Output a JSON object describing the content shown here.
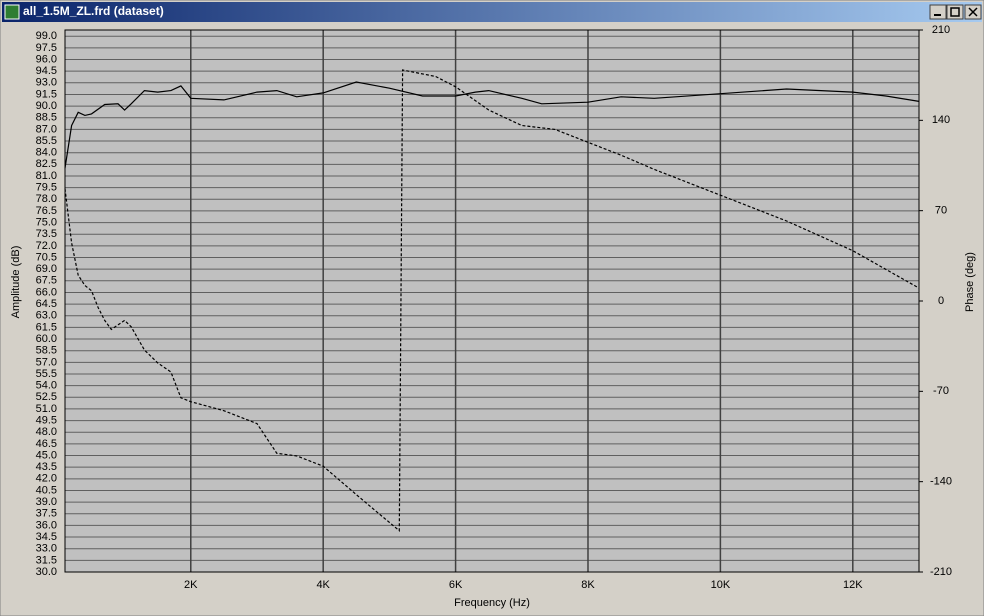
{
  "window": {
    "title": "all_1.5M_ZL.frd (dataset)"
  },
  "chart_data": {
    "type": "line",
    "xlabel": "Frequency (Hz)",
    "ylabel": "Amplitude (dB)",
    "y2label": "Phase (deg)",
    "xlim": [
      100,
      13000
    ],
    "ylim": [
      30,
      99.8
    ],
    "y2lim": [
      -210,
      210
    ],
    "xticks": [
      {
        "value": 2000,
        "label": "2K"
      },
      {
        "value": 4000,
        "label": "4K"
      },
      {
        "value": 6000,
        "label": "6K"
      },
      {
        "value": 8000,
        "label": "8K"
      },
      {
        "value": 10000,
        "label": "10K"
      },
      {
        "value": 12000,
        "label": "12K"
      }
    ],
    "yticks": [
      {
        "value": 30,
        "label": "30.0"
      },
      31.5,
      {
        "value": 33,
        "label": "33.0"
      },
      34.5,
      {
        "value": 36,
        "label": "36.0"
      },
      37.5,
      {
        "value": 39,
        "label": "39.0"
      },
      40.5,
      {
        "value": 42,
        "label": "42.0"
      },
      43.5,
      {
        "value": 45,
        "label": "45.0"
      },
      46.5,
      {
        "value": 48,
        "label": "48.0"
      },
      49.5,
      {
        "value": 51,
        "label": "51.0"
      },
      52.5,
      {
        "value": 54,
        "label": "54.0"
      },
      55.5,
      {
        "value": 57,
        "label": "57.0"
      },
      58.5,
      {
        "value": 60,
        "label": "60.0"
      },
      61.5,
      {
        "value": 63,
        "label": "63.0"
      },
      64.5,
      {
        "value": 66,
        "label": "66.0"
      },
      67.5,
      {
        "value": 69,
        "label": "69.0"
      },
      70.5,
      {
        "value": 72,
        "label": "72.0"
      },
      73.5,
      {
        "value": 75,
        "label": "75.0"
      },
      76.5,
      {
        "value": 78,
        "label": "78.0"
      },
      79.5,
      {
        "value": 81,
        "label": "81.0"
      },
      82.5,
      {
        "value": 84,
        "label": "84.0"
      },
      85.5,
      {
        "value": 87,
        "label": "87.0"
      },
      88.5,
      {
        "value": 90,
        "label": "90.0"
      },
      91.5,
      {
        "value": 93,
        "label": "93.0"
      },
      94.5,
      {
        "value": 96,
        "label": "96.0"
      },
      97.5,
      {
        "value": 99,
        "label": "99.0"
      }
    ],
    "y2ticks": [
      -210,
      -140,
      -70,
      0,
      70,
      140,
      210
    ],
    "grid": true,
    "series": [
      {
        "name": "Amplitude",
        "color": "#000000",
        "line_style": "solid",
        "x": [
          100,
          200,
          300,
          400,
          500,
          700,
          900,
          1000,
          1100,
          1300,
          1500,
          1700,
          1850,
          2000,
          2500,
          3000,
          3300,
          3600,
          4000,
          4500,
          5000,
          5500,
          6000,
          6300,
          6500,
          7000,
          7300,
          8000,
          8500,
          9000,
          10000,
          11000,
          12000,
          12500,
          13000
        ],
        "values": [
          82,
          87.5,
          89.2,
          88.8,
          89,
          90.2,
          90.3,
          89.5,
          90.3,
          92,
          91.8,
          92,
          92.6,
          91,
          90.8,
          91.8,
          92,
          91.2,
          91.7,
          93.1,
          92.3,
          91.3,
          91.3,
          91.8,
          92,
          91,
          90.3,
          90.5,
          91.2,
          91,
          91.6,
          92.2,
          91.8,
          91.3,
          90.6
        ]
      },
      {
        "name": "Phase",
        "color": "#000000",
        "line_style": "dashed",
        "axis": "y2",
        "x": [
          100,
          200,
          300,
          400,
          500,
          600,
          700,
          800,
          1000,
          1100,
          1300,
          1500,
          1700,
          1850,
          2000,
          2500,
          3000,
          3300,
          3600,
          4000,
          4500,
          4800,
          5150,
          5200,
          5700,
          6000,
          6500,
          7000,
          7500,
          8000,
          8500,
          9000,
          10000,
          11000,
          12000,
          13000
        ],
        "values": [
          87,
          45,
          20,
          12,
          8,
          -5,
          -15,
          -22,
          -15,
          -20,
          -38,
          -48,
          -55,
          -75,
          -78,
          -85,
          -95,
          -118,
          -120,
          -128,
          -150,
          -163,
          -178,
          179,
          174,
          166,
          148,
          136,
          133,
          123,
          113,
          102,
          82,
          62,
          39,
          10
        ]
      }
    ]
  }
}
